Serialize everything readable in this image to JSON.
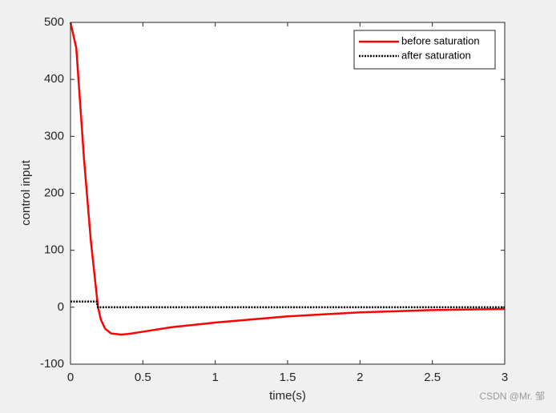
{
  "chart_data": {
    "type": "line",
    "xlabel": "time(s)",
    "ylabel": "control input",
    "xlim": [
      0,
      3
    ],
    "xticks": [
      0,
      0.5,
      1,
      1.5,
      2,
      2.5,
      3
    ],
    "ylim": [
      -100,
      500
    ],
    "yticks": [
      -100,
      0,
      100,
      200,
      300,
      400,
      500
    ],
    "legend": "northeast",
    "series": [
      {
        "name": "before saturation",
        "color": "#ff0000",
        "style": "solid",
        "x": [
          0,
          0.04,
          0.094,
          0.14,
          0.19,
          0.21,
          0.24,
          0.28,
          0.35,
          0.4,
          0.5,
          0.7,
          1,
          1.5,
          2,
          2.5,
          3
        ],
        "values": [
          500,
          455,
          258,
          118,
          0,
          -22,
          -38,
          -46,
          -48,
          -47,
          -43,
          -35,
          -27,
          -16,
          -9,
          -5,
          -3
        ]
      },
      {
        "name": "after saturation",
        "color": "#000000",
        "style": "dotted",
        "x": [
          0,
          0.18,
          0.19,
          3
        ],
        "values": [
          10,
          10,
          0,
          0
        ]
      }
    ]
  },
  "watermark": "CSDN @Mr. 邹"
}
